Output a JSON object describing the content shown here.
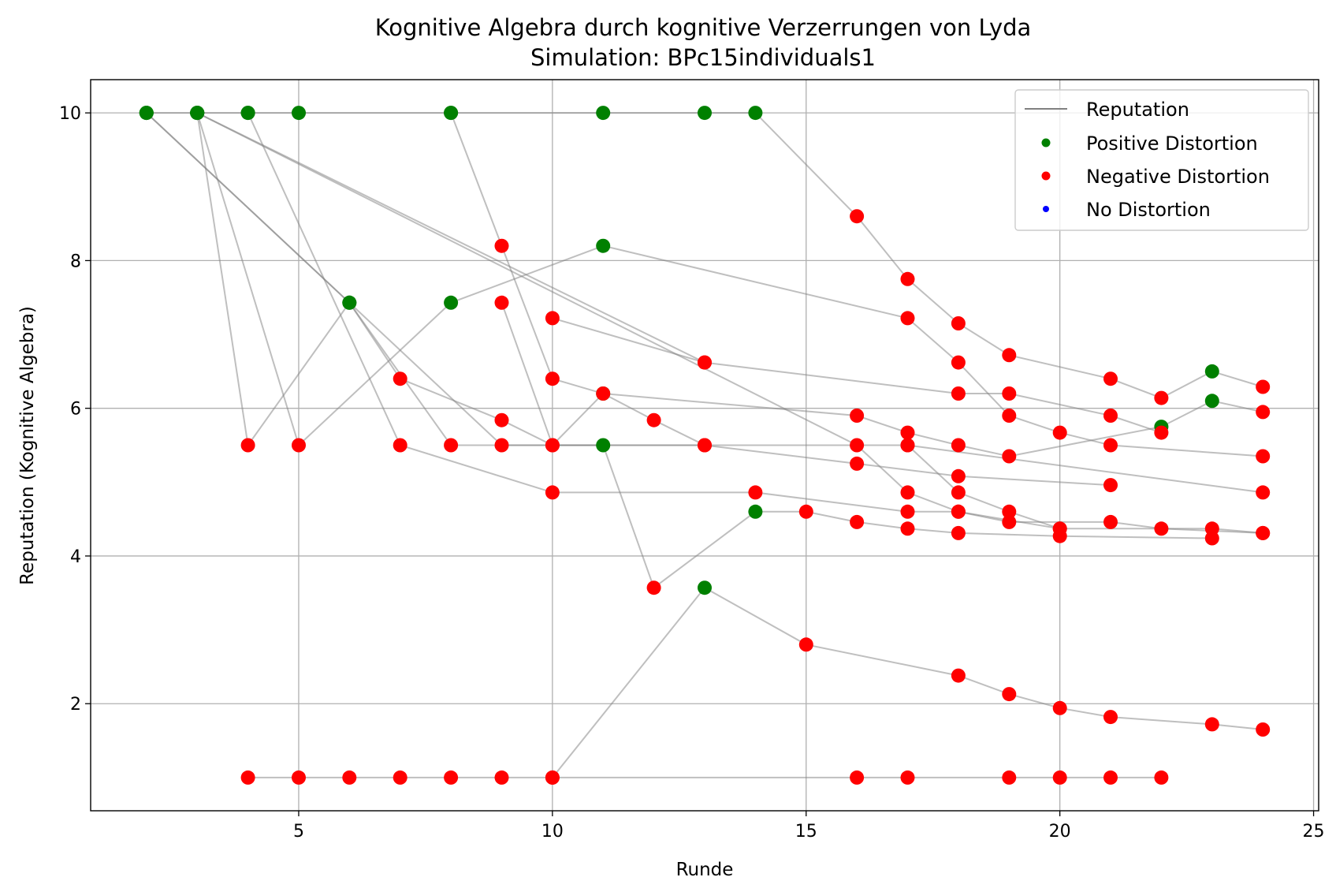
{
  "chart_data": {
    "type": "scatter",
    "title": "Kognitive Algebra durch kognitive Verzerrungen von Lyda",
    "subtitle": "Simulation: BPc15individuals1",
    "xlabel": "Runde",
    "ylabel": "Reputation (Kognitive Algebra)",
    "xlim": [
      0.9,
      25.1
    ],
    "ylim": [
      0.55,
      10.45
    ],
    "xticks": [
      5,
      10,
      15,
      20,
      25
    ],
    "yticks": [
      2,
      4,
      6,
      8,
      10
    ],
    "grid": true,
    "legend_position": "top-right",
    "legend": [
      {
        "name": "Reputation",
        "kind": "line",
        "color": "#808080"
      },
      {
        "name": "Positive Distortion",
        "kind": "marker",
        "color": "#008000"
      },
      {
        "name": "Negative Distortion",
        "kind": "marker",
        "color": "#ff0000"
      },
      {
        "name": "No Distortion",
        "kind": "marker",
        "color": "#0000ff"
      }
    ],
    "colors": {
      "positive": "#008000",
      "negative": "#ff0000",
      "none": "#0000ff",
      "line": "#808080"
    },
    "series": [
      {
        "points": [
          [
            2,
            10,
            "p"
          ],
          [
            3,
            10,
            "p"
          ],
          [
            4,
            10,
            "p"
          ],
          [
            5,
            10,
            "p"
          ],
          [
            8,
            10,
            "p"
          ],
          [
            11,
            10,
            "p"
          ],
          [
            13,
            10,
            "p"
          ],
          [
            14,
            10,
            "p"
          ],
          [
            16,
            8.6,
            "n"
          ],
          [
            17,
            7.75,
            "n"
          ],
          [
            18,
            7.15,
            "n"
          ],
          [
            19,
            6.72,
            "n"
          ],
          [
            21,
            6.4,
            "n"
          ],
          [
            22,
            6.14,
            "n"
          ],
          [
            23,
            6.5,
            "p"
          ],
          [
            24,
            6.29,
            "n"
          ]
        ]
      },
      {
        "points": [
          [
            2,
            10,
            "p"
          ],
          [
            6,
            7.43,
            "p"
          ],
          [
            8,
            5.5,
            "n"
          ],
          [
            11,
            5.5,
            "p"
          ],
          [
            12,
            3.57,
            "n"
          ],
          [
            14,
            4.6,
            "p"
          ],
          [
            15,
            4.6,
            "n"
          ],
          [
            16,
            4.46,
            "n"
          ],
          [
            17,
            4.37,
            "n"
          ],
          [
            18,
            4.31,
            "n"
          ],
          [
            20,
            4.27,
            "n"
          ],
          [
            23,
            4.24,
            "n"
          ]
        ]
      },
      {
        "points": [
          [
            2,
            10,
            "p"
          ],
          [
            9,
            5.5,
            "n"
          ],
          [
            13,
            5.5,
            "n"
          ],
          [
            16,
            5.25,
            "n"
          ],
          [
            18,
            5.08,
            "n"
          ],
          [
            21,
            4.96,
            "n"
          ]
        ]
      },
      {
        "points": [
          [
            3,
            10,
            "p"
          ],
          [
            4,
            5.5,
            "n"
          ],
          [
            6,
            7.43,
            "p"
          ],
          [
            7,
            6.4,
            "n"
          ],
          [
            9,
            5.84,
            "n"
          ],
          [
            10,
            5.5,
            "n"
          ],
          [
            11,
            6.2,
            "p"
          ],
          [
            16,
            5.9,
            "n"
          ],
          [
            17,
            5.67,
            "n"
          ],
          [
            18,
            5.5,
            "n"
          ],
          [
            19,
            5.35,
            "n"
          ],
          [
            22,
            5.75,
            "p"
          ],
          [
            23,
            6.1,
            "p"
          ],
          [
            24,
            5.95,
            "n"
          ]
        ]
      },
      {
        "points": [
          [
            3,
            10,
            "p"
          ],
          [
            5,
            5.5,
            "n"
          ],
          [
            8,
            7.43,
            "p"
          ],
          [
            11,
            8.2,
            "p"
          ],
          [
            17,
            7.22,
            "n"
          ],
          [
            18,
            6.62,
            "n"
          ],
          [
            19,
            5.9,
            "n"
          ],
          [
            20,
            5.67,
            "n"
          ],
          [
            21,
            5.5,
            "n"
          ],
          [
            24,
            5.35,
            "n"
          ]
        ]
      },
      {
        "points": [
          [
            3,
            10,
            "p"
          ],
          [
            16,
            5.5,
            "n"
          ],
          [
            17,
            4.86,
            "n"
          ],
          [
            18,
            4.6,
            "n"
          ],
          [
            19,
            4.46,
            "n"
          ],
          [
            21,
            4.46,
            "n"
          ],
          [
            22,
            4.37,
            "n"
          ],
          [
            24,
            4.31,
            "n"
          ]
        ]
      },
      {
        "points": [
          [
            3,
            10,
            "p"
          ],
          [
            13,
            6.62,
            "n"
          ],
          [
            18,
            6.2,
            "n"
          ],
          [
            19,
            6.2,
            "n"
          ],
          [
            21,
            5.9,
            "n"
          ],
          [
            22,
            5.67,
            "n"
          ]
        ]
      },
      {
        "points": [
          [
            4,
            10,
            "p"
          ],
          [
            7,
            5.5,
            "n"
          ],
          [
            10,
            4.86,
            "n"
          ],
          [
            14,
            4.86,
            "n"
          ],
          [
            17,
            4.6,
            "n"
          ],
          [
            18,
            4.6,
            "n"
          ],
          [
            20,
            4.37,
            "n"
          ],
          [
            23,
            4.37,
            "n"
          ],
          [
            24,
            4.31,
            "n"
          ]
        ]
      },
      {
        "points": [
          [
            8,
            10,
            "p"
          ],
          [
            9,
            8.2,
            "n"
          ],
          [
            10,
            6.4,
            "n"
          ],
          [
            11,
            6.2,
            "n"
          ],
          [
            12,
            5.84,
            "n"
          ],
          [
            13,
            5.5,
            "n"
          ]
        ]
      },
      {
        "points": [
          [
            9,
            7.43,
            "n"
          ],
          [
            10,
            5.5,
            "n"
          ],
          [
            17,
            5.5,
            "n"
          ],
          [
            18,
            4.86,
            "n"
          ],
          [
            19,
            4.6,
            "n"
          ],
          [
            20,
            4.37,
            "n"
          ]
        ]
      },
      {
        "points": [
          [
            10,
            7.22,
            "n"
          ],
          [
            13,
            6.62,
            "n"
          ]
        ]
      },
      {
        "points": [
          [
            17,
            5.5,
            "n"
          ],
          [
            24,
            4.86,
            "n"
          ]
        ]
      },
      {
        "points": [
          [
            4,
            1,
            "n"
          ],
          [
            5,
            1,
            "n"
          ],
          [
            6,
            1,
            "n"
          ],
          [
            7,
            1,
            "n"
          ],
          [
            8,
            1,
            "n"
          ],
          [
            9,
            1,
            "n"
          ],
          [
            10,
            1,
            "n"
          ],
          [
            16,
            1,
            "n"
          ],
          [
            17,
            1,
            "n"
          ],
          [
            19,
            1,
            "n"
          ],
          [
            20,
            1,
            "n"
          ],
          [
            21,
            1,
            "n"
          ],
          [
            22,
            1,
            "n"
          ]
        ]
      },
      {
        "points": [
          [
            10,
            1,
            "n"
          ],
          [
            13,
            3.57,
            "p"
          ],
          [
            15,
            2.8,
            "n"
          ],
          [
            18,
            2.38,
            "n"
          ],
          [
            19,
            2.13,
            "n"
          ],
          [
            20,
            1.94,
            "n"
          ],
          [
            21,
            1.82,
            "n"
          ],
          [
            23,
            1.72,
            "n"
          ],
          [
            24,
            1.65,
            "n"
          ]
        ]
      }
    ]
  }
}
